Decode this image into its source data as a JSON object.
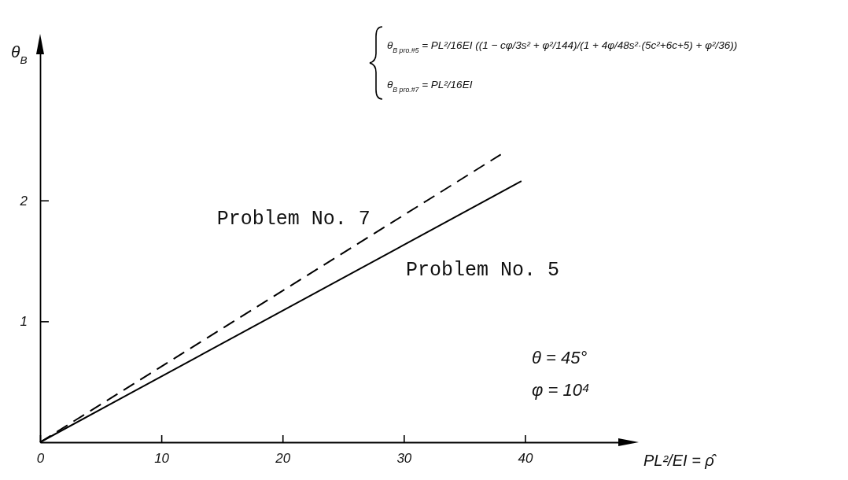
{
  "chart_data": {
    "type": "line",
    "xlabel": "PL²/EI = ρ̂",
    "ylabel": "θ$_{B}$",
    "xlim": [
      0,
      48.6
    ],
    "ylim": [
      0,
      3.3
    ],
    "xticks": [
      0,
      10,
      20,
      30,
      40
    ],
    "yticks": [
      1,
      2
    ],
    "series": [
      {
        "name": "Problem No. 7",
        "color": "#000000",
        "line_style": "dashed",
        "x": [
          0,
          38
        ],
        "values": [
          0,
          2.38
        ]
      },
      {
        "name": "Problem No. 5",
        "color": "#000000",
        "line_style": "solid",
        "x": [
          0,
          39.7
        ],
        "values": [
          0,
          2.16
        ]
      }
    ],
    "annotations": [
      "θ$_{B pro.#5}$ = PL²/16EI ((1 − cφ/3s² + φ²/144)/(1 + 4φ/48s²·(5c²+6c+5) + φ²/36))",
      "θ$_{B pro.#7}$ = PL²/16EI",
      "θ = 45°",
      "φ = 10⁴"
    ]
  }
}
